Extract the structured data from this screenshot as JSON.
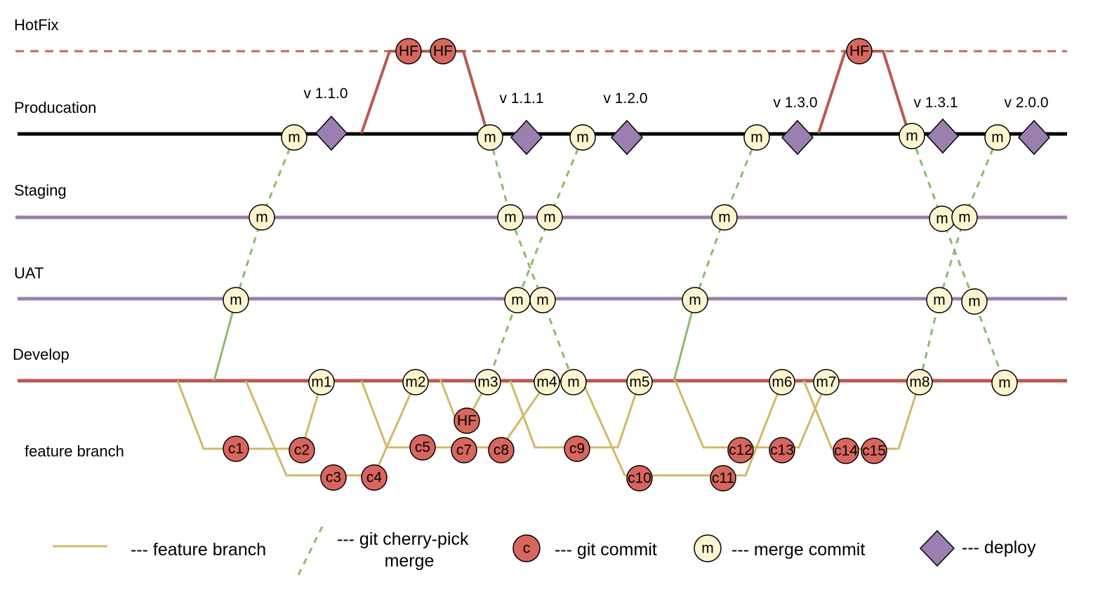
{
  "lanes": {
    "hotfix": "HotFix",
    "production": "Producation",
    "staging": "Staging",
    "uat": "UAT",
    "develop": "Develop",
    "feature": "feature branch"
  },
  "versions": [
    "v 1.1.0",
    "v 1.1.1",
    "v 1.2.0",
    "v 1.3.0",
    "v 1.3.1",
    "v 2.0.0"
  ],
  "hotfix_nodes": [
    "HF",
    "HF",
    "HF"
  ],
  "production_nodes": [
    "m",
    "m",
    "m",
    "m",
    "m",
    "m"
  ],
  "staging_nodes": [
    "m",
    "m",
    "m",
    "m",
    "m",
    "m"
  ],
  "uat_nodes": [
    "m",
    "m",
    "m",
    "m",
    "m",
    "m"
  ],
  "develop_nodes": [
    "m1",
    "m2",
    "m3",
    "m4",
    "m",
    "m5",
    "m6",
    "m7",
    "m8",
    "m"
  ],
  "feature_nodes": [
    "c1",
    "c2",
    "c3",
    "c4",
    "c5",
    "HF",
    "c7",
    "c8",
    "c9",
    "c10",
    "c11",
    "c12",
    "c13",
    "c14",
    "c15"
  ],
  "legend": {
    "feature_branch": "--- feature branch",
    "cherry_pick_1": "--- git cherry-pick",
    "cherry_pick_2": "merge",
    "commit_symbol": "c",
    "commit": "--- git commit",
    "merge_symbol": "m",
    "merge": "--- merge commit",
    "deploy": "--- deploy"
  },
  "colors": {
    "hotfix": "#b86a60",
    "production": "#000000",
    "staging": "#9b80a8",
    "develop": "#b85a50",
    "feature": "#d4b868",
    "cherry": "#8cba6e",
    "commit": "#d9665e",
    "merge": "#fdf5d0",
    "deploy": "#9b7fb0"
  }
}
